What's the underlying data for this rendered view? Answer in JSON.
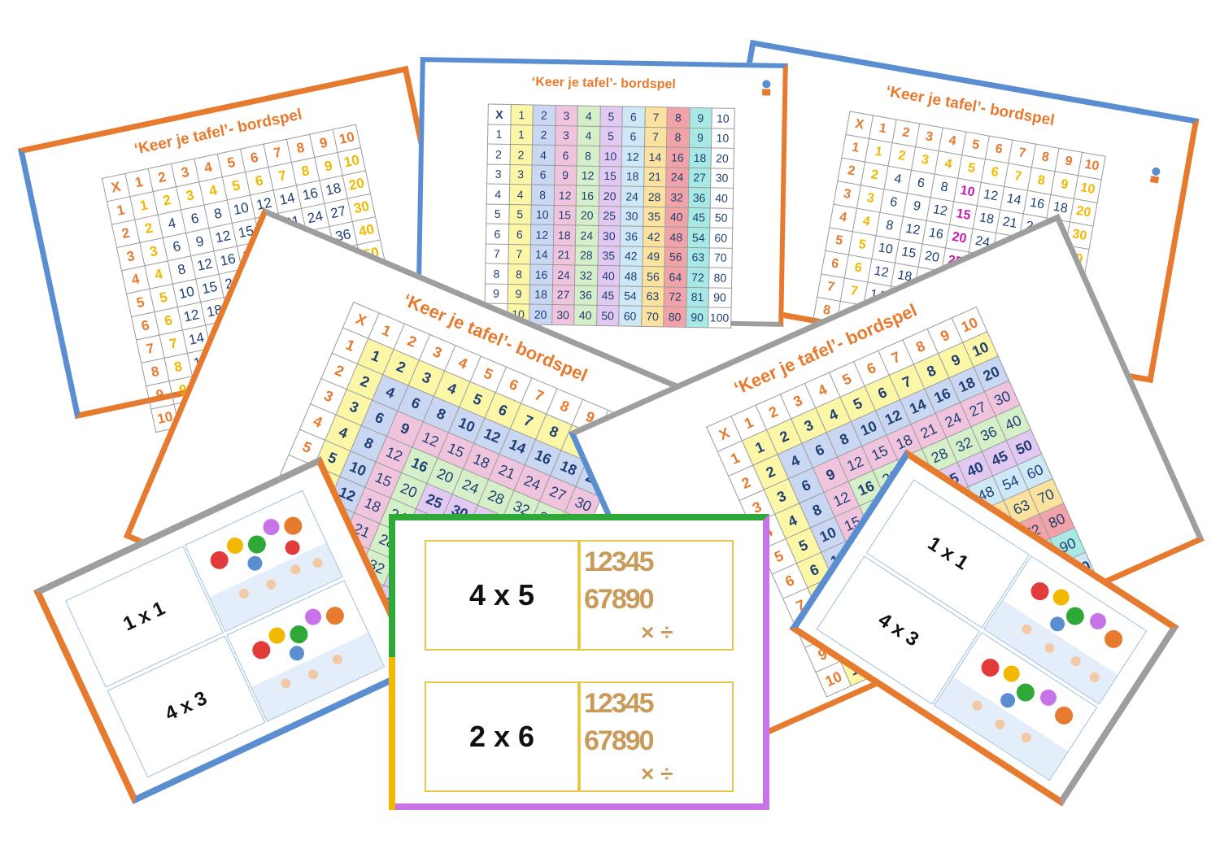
{
  "boards": {
    "title": "‘Keer je tafel’- bordspel",
    "header_symbol": "X",
    "numbers": [
      1,
      2,
      3,
      4,
      5,
      6,
      7,
      8,
      9,
      10
    ]
  },
  "cards": {
    "left": {
      "top": "1 x 1",
      "bottom": "4 x 3"
    },
    "middle": {
      "top": "4 x 5",
      "bottom": "2 x 6"
    },
    "right": {
      "top": "1 x 1",
      "bottom": "4 x 3"
    }
  },
  "colors": {
    "orange": "#e67a2e",
    "blue": "#5b8ed1",
    "gray": "#9e9e9e",
    "green": "#2ea836",
    "yellow": "#f2b800",
    "purple": "#c873e8",
    "number_blue": "#1f3f73",
    "column_pastels": [
      "#ffffff",
      "#fbf7a6",
      "#c9d7f2",
      "#f1c4dd",
      "#d5efc8",
      "#e2c9f1",
      "#cfe8f6",
      "#fbe29e",
      "#f2a3a8",
      "#a9e9e5",
      "#ffffff"
    ]
  },
  "icons": [
    "balloons-kids-illustration",
    "wooden-numbers-illustration",
    "logo-icon"
  ]
}
